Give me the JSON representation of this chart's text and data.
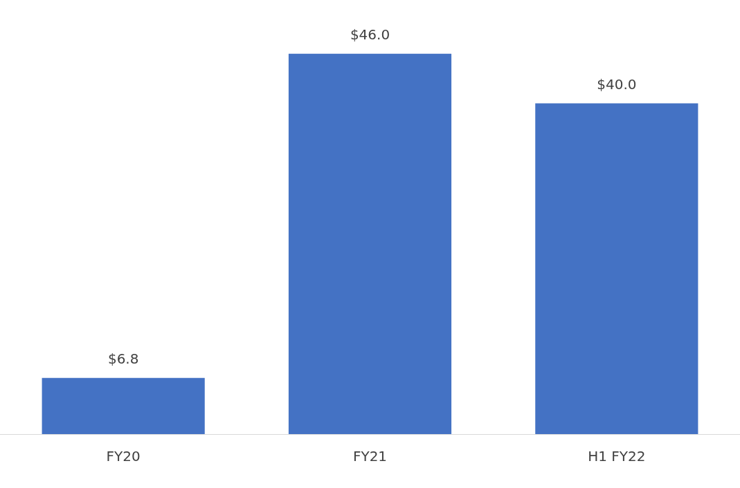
{
  "chart_data": {
    "type": "bar",
    "categories": [
      "FY20",
      "FY21",
      "H1 FY22"
    ],
    "values": [
      6.8,
      46.0,
      40.0
    ],
    "value_labels": [
      "$6.8",
      "$46.0",
      "$40.0"
    ],
    "color": "#4472c4",
    "grid": false,
    "legend": false,
    "tick_labels": "x"
  }
}
